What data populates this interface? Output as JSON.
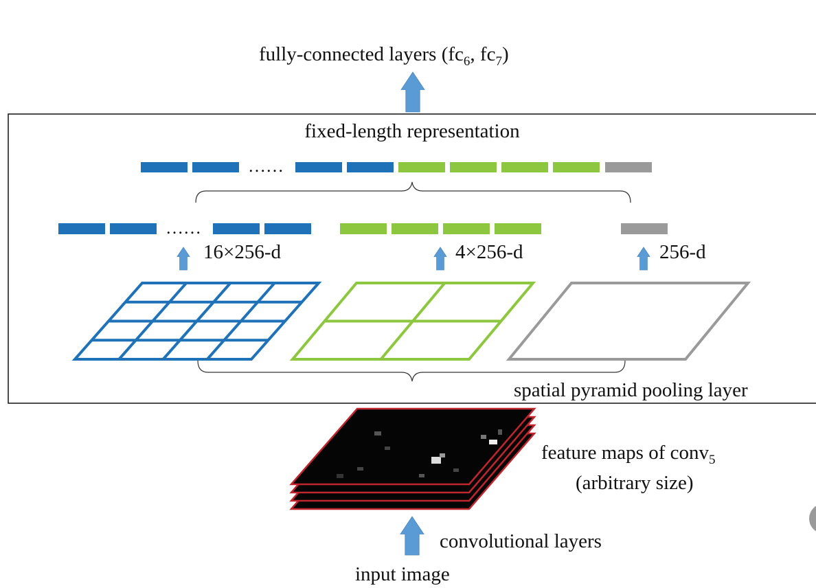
{
  "labels": {
    "fc_title": "fully-connected layers (fc",
    "fc_sub6": "6",
    "fc_mid": ", fc",
    "fc_sub7": "7",
    "fc_close": ")",
    "fixed_length": "fixed-length representation",
    "dots": "……",
    "blue_dim": "16×256-d",
    "green_dim": "4×256-d",
    "gray_dim": "256-d",
    "spp_layer": "spatial pyramid pooling layer",
    "feature_maps": "feature maps of conv",
    "feature_maps_sub": "5",
    "arbitrary_size": "(arbitrary size)",
    "conv_layers": "convolutional layers",
    "input_image": "input image"
  },
  "colors": {
    "blue": "#1f72b8",
    "green": "#8dc63f",
    "gray": "#9a9a9a",
    "arrow": "#5b9bd5",
    "feature_map_border": "#c0262d"
  },
  "pyramid_levels": [
    {
      "name": "blue",
      "grid": 4
    },
    {
      "name": "green",
      "grid": 2
    },
    {
      "name": "gray",
      "grid": 1
    }
  ]
}
